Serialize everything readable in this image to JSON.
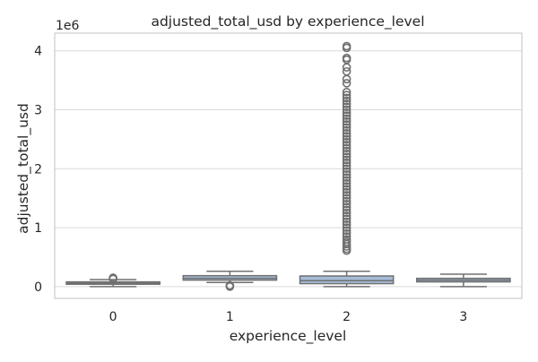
{
  "chart_data": {
    "type": "box",
    "title": "adjusted_total_usd by experience_level",
    "xlabel": "experience_level",
    "ylabel": "adjusted_total_usd",
    "y_offset_label": "1e6",
    "y_scale": 1000000,
    "categories": [
      "0",
      "1",
      "2",
      "3"
    ],
    "ylim": [
      -200000,
      4300000
    ],
    "yticks": [
      0,
      1000000,
      2000000,
      3000000,
      4000000
    ],
    "ytick_labels": [
      "0",
      "1",
      "2",
      "3",
      "4"
    ],
    "grid": "horizontal",
    "boxes": [
      {
        "category": "0",
        "whisker_low": 0,
        "q1": 40000,
        "median": 60000,
        "q3": 80000,
        "whisker_high": 120000,
        "outliers": [
          130000,
          140000,
          150000
        ]
      },
      {
        "category": "1",
        "whisker_low": 70000,
        "q1": 110000,
        "median": 140000,
        "q3": 185000,
        "whisker_high": 260000,
        "outliers": [
          0,
          10000,
          20000
        ]
      },
      {
        "category": "2",
        "whisker_low": 0,
        "q1": 50000,
        "median": 100000,
        "q3": 180000,
        "whisker_high": 260000,
        "outliers": [
          610000,
          640000,
          680000,
          720000,
          760000,
          800000,
          850000,
          900000,
          950000,
          1000000,
          1050000,
          1100000,
          1150000,
          1200000,
          1250000,
          1300000,
          1350000,
          1400000,
          1450000,
          1500000,
          1550000,
          1600000,
          1650000,
          1700000,
          1750000,
          1800000,
          1850000,
          1900000,
          1950000,
          2000000,
          2050000,
          2100000,
          2150000,
          2200000,
          2250000,
          2300000,
          2350000,
          2400000,
          2450000,
          2500000,
          2550000,
          2600000,
          2650000,
          2700000,
          2750000,
          2800000,
          2850000,
          2900000,
          2950000,
          3000000,
          3050000,
          3100000,
          3150000,
          3200000,
          3250000,
          3300000,
          3450000,
          3520000,
          3650000,
          3720000,
          3850000,
          3880000,
          4050000,
          4080000
        ]
      },
      {
        "category": "3",
        "whisker_low": 0,
        "q1": 80000,
        "median": 110000,
        "q3": 140000,
        "whisker_high": 210000,
        "outliers": []
      }
    ],
    "colors": {
      "box_fill": "#a6bcd8",
      "line": "#707070",
      "grid": "#d9d9d9",
      "frame": "#cccccc",
      "text": "#262626"
    }
  }
}
